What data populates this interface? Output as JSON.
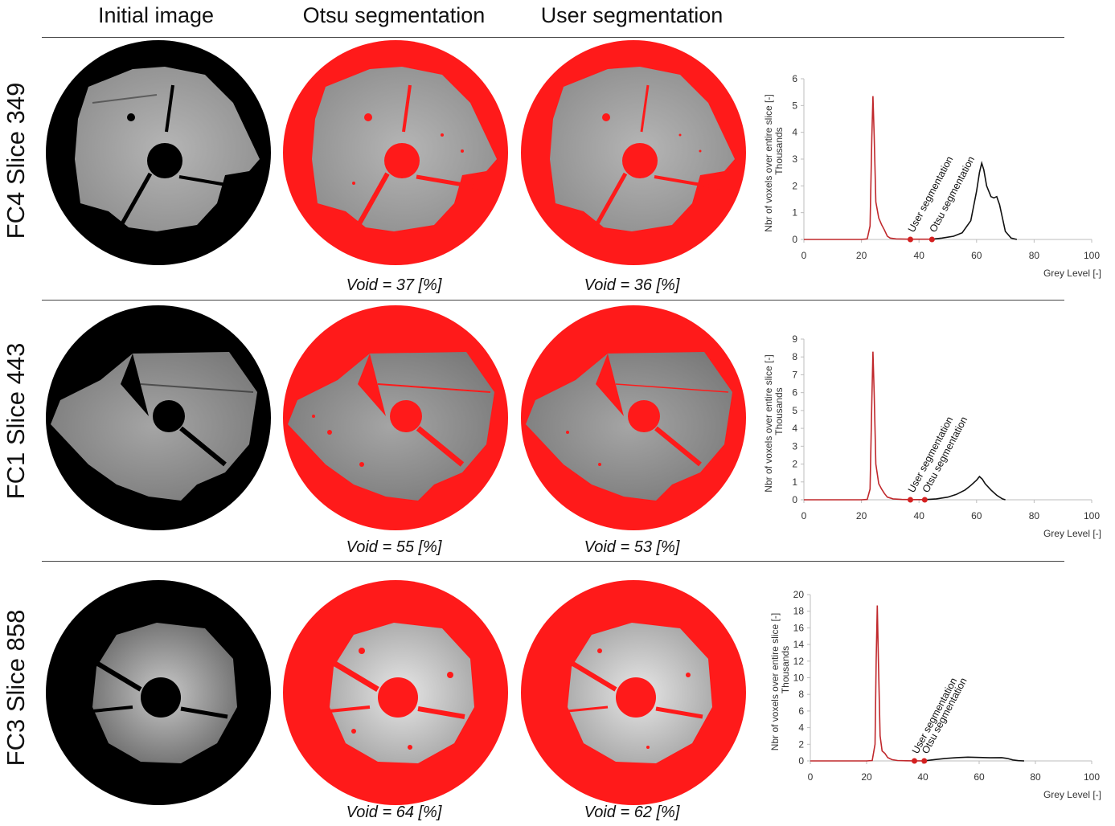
{
  "column_headers": [
    "Initial image",
    "Otsu segmentation",
    "User segmentation"
  ],
  "colors": {
    "void_red": "#ff1a1a",
    "otsu_curve": "#111111",
    "user_curve": "#c0282c",
    "marker": "#d42020",
    "axis": "#bdbdbd"
  },
  "rows": [
    {
      "label": "FC4 Slice 349",
      "void_otsu": "Void = 37 [%]",
      "void_user": "Void = 36 [%]",
      "material": "light-grey, fractured sample with central hole",
      "chart_data": {
        "type": "line",
        "ylabel": "Nbr of voxels over entire slice [-]",
        "yunit": "Thousands",
        "xlabel": "Grey Level [-]",
        "xlim": [
          0,
          100
        ],
        "ylim": [
          0,
          6
        ],
        "xticks": [
          "0",
          "20",
          "40",
          "60",
          "80",
          "100"
        ],
        "yticks": [
          "0",
          "1",
          "2",
          "3",
          "4",
          "5",
          "6"
        ],
        "annotations": [
          {
            "text": "User segmentation",
            "x": 37
          },
          {
            "text": "Otsu segmentation",
            "x": 44.5
          }
        ],
        "series": [
          {
            "color": "#c0282c",
            "points": [
              [
                0,
                0
              ],
              [
                20,
                0
              ],
              [
                22,
                0.02
              ],
              [
                23,
                0.5
              ],
              [
                23.6,
                3.8
              ],
              [
                24,
                5.35
              ],
              [
                24.4,
                3.9
              ],
              [
                25,
                1.4
              ],
              [
                26,
                0.8
              ],
              [
                27,
                0.55
              ],
              [
                28,
                0.35
              ],
              [
                29,
                0.12
              ],
              [
                30,
                0.05
              ],
              [
                32,
                0.02
              ],
              [
                37,
                0.01
              ],
              [
                44.5,
                0.01
              ]
            ]
          },
          {
            "color": "#111111",
            "points": [
              [
                44.5,
                0.01
              ],
              [
                48,
                0.05
              ],
              [
                52,
                0.12
              ],
              [
                55,
                0.25
              ],
              [
                58,
                0.7
              ],
              [
                60,
                1.8
              ],
              [
                61,
                2.5
              ],
              [
                61.8,
                2.85
              ],
              [
                62.5,
                2.6
              ],
              [
                63.5,
                2.0
              ],
              [
                65,
                1.6
              ],
              [
                66,
                1.55
              ],
              [
                67,
                1.6
              ],
              [
                68,
                1.3
              ],
              [
                69,
                0.8
              ],
              [
                70,
                0.3
              ],
              [
                72,
                0.05
              ],
              [
                74,
                0
              ]
            ]
          }
        ]
      }
    },
    {
      "label": "FC1 Slice 443",
      "void_otsu": "Void = 55 [%]",
      "void_user": "Void = 53 [%]",
      "material": "rough grey porous sample with central hole",
      "chart_data": {
        "type": "line",
        "ylabel": "Nbr of voxels over entire slice [-]",
        "yunit": "Thousands",
        "xlabel": "Grey Level [-]",
        "xlim": [
          0,
          100
        ],
        "ylim": [
          0,
          9
        ],
        "xticks": [
          "0",
          "20",
          "40",
          "60",
          "80",
          "100"
        ],
        "yticks": [
          "0",
          "1",
          "2",
          "3",
          "4",
          "5",
          "6",
          "7",
          "8",
          "9"
        ],
        "annotations": [
          {
            "text": "User segmentation",
            "x": 37
          },
          {
            "text": "Otsu segmentation",
            "x": 42
          }
        ],
        "series": [
          {
            "color": "#c0282c",
            "points": [
              [
                0,
                0
              ],
              [
                20,
                0
              ],
              [
                22,
                0.02
              ],
              [
                23,
                0.6
              ],
              [
                23.6,
                5.5
              ],
              [
                24,
                8.3
              ],
              [
                24.4,
                6.0
              ],
              [
                25,
                2.0
              ],
              [
                26,
                0.9
              ],
              [
                27,
                0.6
              ],
              [
                28,
                0.35
              ],
              [
                29,
                0.15
              ],
              [
                31,
                0.05
              ],
              [
                34,
                0.02
              ],
              [
                37,
                0.01
              ],
              [
                42,
                0.01
              ]
            ]
          },
          {
            "color": "#111111",
            "points": [
              [
                42,
                0.01
              ],
              [
                46,
                0.05
              ],
              [
                50,
                0.15
              ],
              [
                53,
                0.3
              ],
              [
                56,
                0.55
              ],
              [
                58,
                0.8
              ],
              [
                60,
                1.1
              ],
              [
                61,
                1.3
              ],
              [
                62,
                1.15
              ],
              [
                63,
                0.9
              ],
              [
                65,
                0.55
              ],
              [
                67,
                0.25
              ],
              [
                69,
                0.05
              ],
              [
                70,
                0
              ]
            ]
          }
        ]
      }
    },
    {
      "label": "FC3 Slice 858",
      "void_otsu": "Void = 64 [%]",
      "void_user": "Void = 62 [%]",
      "material": "bright textured sample, mostly void",
      "chart_data": {
        "type": "line",
        "ylabel": "Nbr of voxels over entire slice [-]",
        "yunit": "Thousands",
        "xlabel": "Grey Level [-]",
        "xlim": [
          0,
          100
        ],
        "ylim": [
          0,
          20
        ],
        "xticks": [
          "0",
          "20",
          "40",
          "60",
          "80",
          "100"
        ],
        "yticks": [
          "0",
          "2",
          "4",
          "6",
          "8",
          "10",
          "12",
          "14",
          "16",
          "18",
          "20"
        ],
        "annotations": [
          {
            "text": "User segmentation",
            "x": 37
          },
          {
            "text": "Otsu segmentation",
            "x": 40.5
          }
        ],
        "series": [
          {
            "color": "#c0282c",
            "points": [
              [
                0,
                0
              ],
              [
                20,
                0
              ],
              [
                22,
                0.05
              ],
              [
                23,
                2.0
              ],
              [
                23.4,
                12.0
              ],
              [
                23.8,
                18.7
              ],
              [
                24.2,
                12.0
              ],
              [
                24.8,
                3.0
              ],
              [
                25.5,
                1.2
              ],
              [
                26.5,
                0.9
              ],
              [
                27.5,
                0.4
              ],
              [
                29,
                0.15
              ],
              [
                31,
                0.05
              ],
              [
                34,
                0.02
              ],
              [
                37,
                0.01
              ],
              [
                40.5,
                0.01
              ]
            ]
          },
          {
            "color": "#111111",
            "points": [
              [
                40.5,
                0.01
              ],
              [
                44,
                0.15
              ],
              [
                48,
                0.3
              ],
              [
                52,
                0.4
              ],
              [
                56,
                0.45
              ],
              [
                60,
                0.42
              ],
              [
                64,
                0.38
              ],
              [
                68,
                0.4
              ],
              [
                70,
                0.3
              ],
              [
                72,
                0.12
              ],
              [
                74,
                0.03
              ],
              [
                76,
                0
              ]
            ]
          }
        ]
      }
    }
  ]
}
